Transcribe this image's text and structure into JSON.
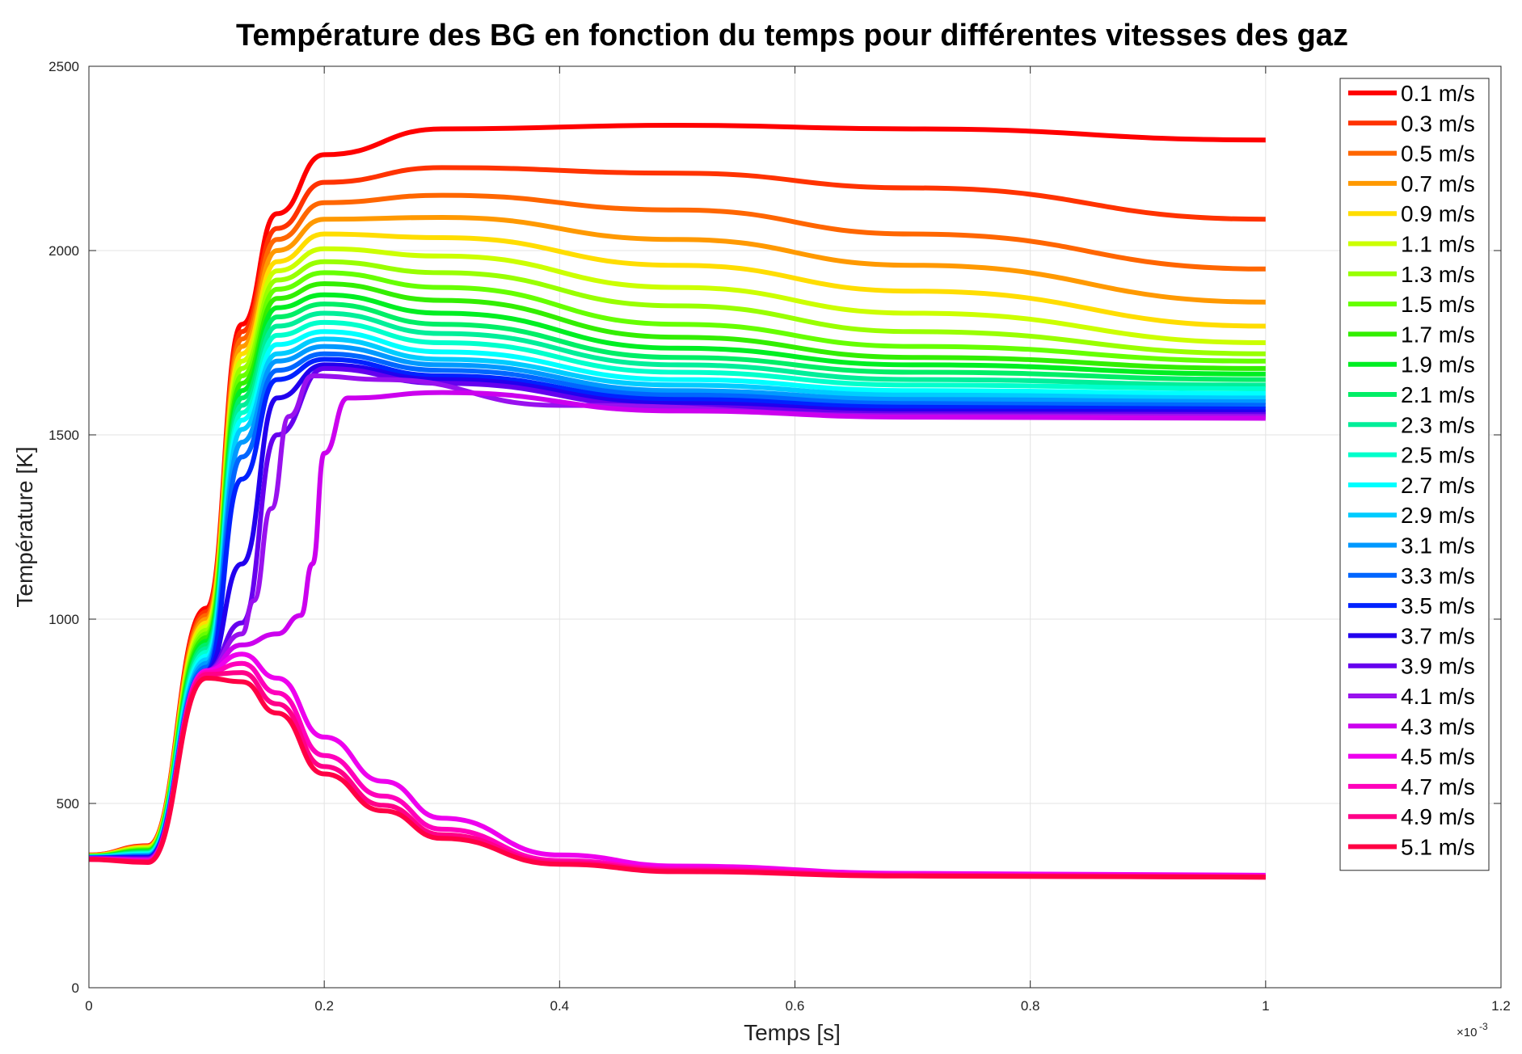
{
  "chart_data": {
    "type": "line",
    "title": "Température des BG en fonction du temps pour différentes vitesses des gaz",
    "xlabel": "Temps [s]",
    "ylabel": "Température [K]",
    "x_scale_label": "×10",
    "x_scale_exponent": "-3",
    "xlim": [
      0,
      1.2
    ],
    "ylim": [
      0,
      2500
    ],
    "x_ticks": [
      "0",
      "0.2",
      "0.4",
      "0.6",
      "0.8",
      "1",
      "1.2"
    ],
    "y_ticks": [
      "0",
      "500",
      "1000",
      "1500",
      "2000",
      "2500"
    ],
    "grid": true,
    "legend_position": "top-right",
    "x_unit_note": "x values in units of 1e-3 s",
    "series": [
      {
        "name": "0.1 m/s",
        "color": "#ff0000",
        "x": [
          0,
          0.05,
          0.1,
          0.13,
          0.16,
          0.2,
          0.3,
          0.5,
          0.7,
          1.0
        ],
        "y": [
          360,
          385,
          1030,
          1800,
          2100,
          2260,
          2330,
          2340,
          2330,
          2300
        ]
      },
      {
        "name": "0.3 m/s",
        "color": "#ff3300",
        "x": [
          0,
          0.05,
          0.1,
          0.13,
          0.16,
          0.2,
          0.3,
          0.5,
          0.7,
          1.0
        ],
        "y": [
          360,
          384,
          1020,
          1780,
          2060,
          2185,
          2225,
          2210,
          2170,
          2085
        ]
      },
      {
        "name": "0.5 m/s",
        "color": "#ff6600",
        "x": [
          0,
          0.05,
          0.1,
          0.13,
          0.16,
          0.2,
          0.3,
          0.5,
          0.7,
          1.0
        ],
        "y": [
          359,
          383,
          1010,
          1760,
          2030,
          2130,
          2150,
          2110,
          2045,
          1950
        ]
      },
      {
        "name": "0.7 m/s",
        "color": "#ff9900",
        "x": [
          0,
          0.05,
          0.1,
          0.13,
          0.16,
          0.2,
          0.3,
          0.5,
          0.7,
          1.0
        ],
        "y": [
          359,
          382,
          1000,
          1740,
          2000,
          2085,
          2090,
          2030,
          1960,
          1860
        ]
      },
      {
        "name": "0.9 m/s",
        "color": "#ffdd00",
        "x": [
          0,
          0.05,
          0.1,
          0.13,
          0.16,
          0.2,
          0.3,
          0.5,
          0.7,
          1.0
        ],
        "y": [
          358,
          380,
          990,
          1720,
          1970,
          2045,
          2035,
          1960,
          1890,
          1795
        ]
      },
      {
        "name": "1.1 m/s",
        "color": "#ccff00",
        "x": [
          0,
          0.05,
          0.1,
          0.13,
          0.16,
          0.2,
          0.3,
          0.5,
          0.7,
          1.0
        ],
        "y": [
          358,
          378,
          980,
          1700,
          1945,
          2005,
          1985,
          1900,
          1830,
          1750
        ]
      },
      {
        "name": "1.3 m/s",
        "color": "#99ff00",
        "x": [
          0,
          0.05,
          0.1,
          0.13,
          0.16,
          0.2,
          0.3,
          0.5,
          0.7,
          1.0
        ],
        "y": [
          357,
          376,
          970,
          1680,
          1920,
          1970,
          1940,
          1850,
          1780,
          1720
        ]
      },
      {
        "name": "1.5 m/s",
        "color": "#66ff00",
        "x": [
          0,
          0.05,
          0.1,
          0.13,
          0.16,
          0.2,
          0.3,
          0.5,
          0.7,
          1.0
        ],
        "y": [
          357,
          374,
          960,
          1660,
          1895,
          1940,
          1900,
          1800,
          1740,
          1700
        ]
      },
      {
        "name": "1.7 m/s",
        "color": "#33ee00",
        "x": [
          0,
          0.05,
          0.1,
          0.13,
          0.16,
          0.2,
          0.3,
          0.5,
          0.7,
          1.0
        ],
        "y": [
          356,
          372,
          950,
          1640,
          1870,
          1910,
          1865,
          1765,
          1710,
          1680
        ]
      },
      {
        "name": "1.9 m/s",
        "color": "#00ee22",
        "x": [
          0,
          0.05,
          0.1,
          0.13,
          0.16,
          0.2,
          0.3,
          0.5,
          0.7,
          1.0
        ],
        "y": [
          356,
          370,
          940,
          1620,
          1845,
          1880,
          1830,
          1735,
          1690,
          1665
        ]
      },
      {
        "name": "2.1 m/s",
        "color": "#00ee66",
        "x": [
          0,
          0.05,
          0.1,
          0.13,
          0.16,
          0.2,
          0.3,
          0.5,
          0.7,
          1.0
        ],
        "y": [
          355,
          368,
          930,
          1600,
          1820,
          1855,
          1800,
          1710,
          1670,
          1650
        ]
      },
      {
        "name": "2.3 m/s",
        "color": "#00ee99",
        "x": [
          0,
          0.05,
          0.1,
          0.13,
          0.16,
          0.2,
          0.3,
          0.5,
          0.7,
          1.0
        ],
        "y": [
          355,
          366,
          920,
          1580,
          1795,
          1830,
          1775,
          1690,
          1650,
          1635
        ]
      },
      {
        "name": "2.5 m/s",
        "color": "#00ffcc",
        "x": [
          0,
          0.05,
          0.1,
          0.13,
          0.16,
          0.2,
          0.3,
          0.5,
          0.7,
          1.0
        ],
        "y": [
          354,
          364,
          910,
          1560,
          1770,
          1805,
          1750,
          1670,
          1635,
          1625
        ]
      },
      {
        "name": "2.7 m/s",
        "color": "#00ffff",
        "x": [
          0,
          0.05,
          0.1,
          0.13,
          0.16,
          0.2,
          0.3,
          0.5,
          0.7,
          1.0
        ],
        "y": [
          354,
          362,
          900,
          1540,
          1745,
          1780,
          1725,
          1650,
          1620,
          1612
        ]
      },
      {
        "name": "2.9 m/s",
        "color": "#00ccff",
        "x": [
          0,
          0.05,
          0.1,
          0.13,
          0.16,
          0.2,
          0.3,
          0.5,
          0.7,
          1.0
        ],
        "y": [
          353,
          360,
          890,
          1515,
          1720,
          1760,
          1705,
          1635,
          1608,
          1600
        ]
      },
      {
        "name": "3.1 m/s",
        "color": "#0099ff",
        "x": [
          0,
          0.05,
          0.1,
          0.13,
          0.16,
          0.2,
          0.3,
          0.5,
          0.7,
          1.0
        ],
        "y": [
          353,
          358,
          880,
          1480,
          1700,
          1740,
          1690,
          1620,
          1596,
          1590
        ]
      },
      {
        "name": "3.3 m/s",
        "color": "#0066ff",
        "x": [
          0,
          0.05,
          0.1,
          0.13,
          0.16,
          0.2,
          0.3,
          0.5,
          0.7,
          1.0
        ],
        "y": [
          352,
          356,
          870,
          1440,
          1675,
          1720,
          1675,
          1608,
          1585,
          1580
        ]
      },
      {
        "name": "3.5 m/s",
        "color": "#0022ff",
        "x": [
          0,
          0.05,
          0.1,
          0.13,
          0.16,
          0.2,
          0.3,
          0.5,
          0.7,
          1.0
        ],
        "y": [
          352,
          354,
          860,
          1380,
          1650,
          1705,
          1660,
          1596,
          1575,
          1570
        ]
      },
      {
        "name": "3.7 m/s",
        "color": "#2200ee",
        "x": [
          0,
          0.05,
          0.1,
          0.13,
          0.16,
          0.2,
          0.3,
          0.5,
          0.7,
          1.0
        ],
        "y": [
          351,
          352,
          860,
          1150,
          1600,
          1690,
          1650,
          1585,
          1565,
          1562
        ]
      },
      {
        "name": "3.9 m/s",
        "color": "#6600ee",
        "x": [
          0,
          0.05,
          0.1,
          0.13,
          0.16,
          0.2,
          0.3,
          0.5,
          0.7,
          1.0
        ],
        "y": [
          351,
          350,
          860,
          990,
          1500,
          1680,
          1640,
          1575,
          1557,
          1555
        ]
      },
      {
        "name": "4.1 m/s",
        "color": "#9911ee",
        "x": [
          0,
          0.05,
          0.1,
          0.13,
          0.14,
          0.155,
          0.17,
          0.19,
          0.25,
          0.4,
          0.7,
          1.0
        ],
        "y": [
          350,
          348,
          860,
          960,
          1050,
          1300,
          1550,
          1660,
          1650,
          1580,
          1552,
          1550
        ]
      },
      {
        "name": "4.3 m/s",
        "color": "#cc00ee",
        "x": [
          0,
          0.05,
          0.1,
          0.13,
          0.16,
          0.18,
          0.19,
          0.2,
          0.22,
          0.3,
          0.5,
          0.7,
          1.0
        ],
        "y": [
          350,
          346,
          860,
          930,
          960,
          1010,
          1150,
          1450,
          1600,
          1615,
          1565,
          1548,
          1545
        ]
      },
      {
        "name": "4.5 m/s",
        "color": "#ee00ee",
        "x": [
          0,
          0.05,
          0.1,
          0.13,
          0.16,
          0.2,
          0.25,
          0.3,
          0.4,
          0.5,
          0.7,
          1.0
        ],
        "y": [
          349,
          344,
          860,
          905,
          840,
          680,
          560,
          460,
          360,
          330,
          310,
          305
        ]
      },
      {
        "name": "4.7 m/s",
        "color": "#ff00bb",
        "x": [
          0,
          0.05,
          0.1,
          0.13,
          0.16,
          0.2,
          0.25,
          0.3,
          0.4,
          0.5,
          0.7,
          1.0
        ],
        "y": [
          349,
          343,
          855,
          880,
          800,
          630,
          520,
          430,
          345,
          322,
          306,
          302
        ]
      },
      {
        "name": "4.9 m/s",
        "color": "#ff0088",
        "x": [
          0,
          0.05,
          0.1,
          0.13,
          0.16,
          0.2,
          0.25,
          0.3,
          0.4,
          0.5,
          0.7,
          1.0
        ],
        "y": [
          348,
          342,
          850,
          855,
          770,
          600,
          495,
          415,
          340,
          318,
          304,
          300
        ]
      },
      {
        "name": "5.1 m/s",
        "color": "#ff0044",
        "x": [
          0,
          0.05,
          0.1,
          0.13,
          0.16,
          0.2,
          0.25,
          0.3,
          0.4,
          0.5,
          0.7,
          1.0
        ],
        "y": [
          348,
          340,
          840,
          830,
          745,
          580,
          480,
          405,
          335,
          315,
          303,
          300
        ]
      }
    ]
  }
}
